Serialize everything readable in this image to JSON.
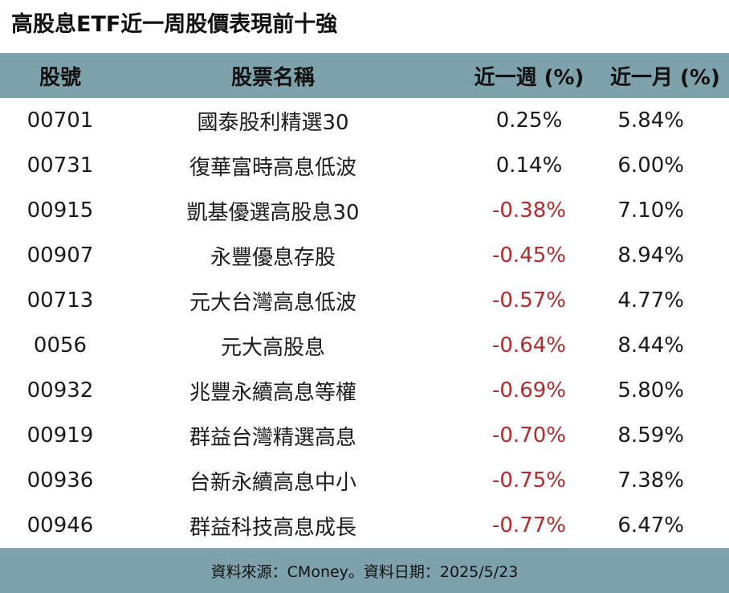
{
  "title": "高股息ETF近一周股價表現前十強",
  "colors": {
    "header_bg": "#7ea2ab",
    "negative": "#b52a2a",
    "text": "#1a1a1a"
  },
  "chart_data": {
    "type": "table",
    "title": "高股息ETF近一周股價表現前十強",
    "columns": [
      "股號",
      "股票名稱",
      "近一週 (%)",
      "近一月 (%)"
    ],
    "rows": [
      {
        "code": "00701",
        "name": "國泰股利精選30",
        "week": "0.25%",
        "month": "5.84%",
        "week_value": 0.25,
        "month_value": 5.84
      },
      {
        "code": "00731",
        "name": "復華富時高息低波",
        "week": "0.14%",
        "month": "6.00%",
        "week_value": 0.14,
        "month_value": 6.0
      },
      {
        "code": "00915",
        "name": "凱基優選高股息30",
        "week": "-0.38%",
        "month": "7.10%",
        "week_value": -0.38,
        "month_value": 7.1
      },
      {
        "code": "00907",
        "name": "永豐優息存股",
        "week": "-0.45%",
        "month": "8.94%",
        "week_value": -0.45,
        "month_value": 8.94
      },
      {
        "code": "00713",
        "name": "元大台灣高息低波",
        "week": "-0.57%",
        "month": "4.77%",
        "week_value": -0.57,
        "month_value": 4.77
      },
      {
        "code": "0056",
        "name": "元大高股息",
        "week": "-0.64%",
        "month": "8.44%",
        "week_value": -0.64,
        "month_value": 8.44
      },
      {
        "code": "00932",
        "name": "兆豐永續高息等權",
        "week": "-0.69%",
        "month": "5.80%",
        "week_value": -0.69,
        "month_value": 5.8
      },
      {
        "code": "00919",
        "name": "群益台灣精選高息",
        "week": "-0.70%",
        "month": "8.59%",
        "week_value": -0.7,
        "month_value": 8.59
      },
      {
        "code": "00936",
        "name": "台新永續高息中小",
        "week": "-0.75%",
        "month": "7.38%",
        "week_value": -0.75,
        "month_value": 7.38
      },
      {
        "code": "00946",
        "name": "群益科技高息成長",
        "week": "-0.77%",
        "month": "6.47%",
        "week_value": -0.77,
        "month_value": 6.47
      }
    ]
  },
  "footer": {
    "text": "資料來源：CMoney。資料日期：2025/5/23"
  }
}
